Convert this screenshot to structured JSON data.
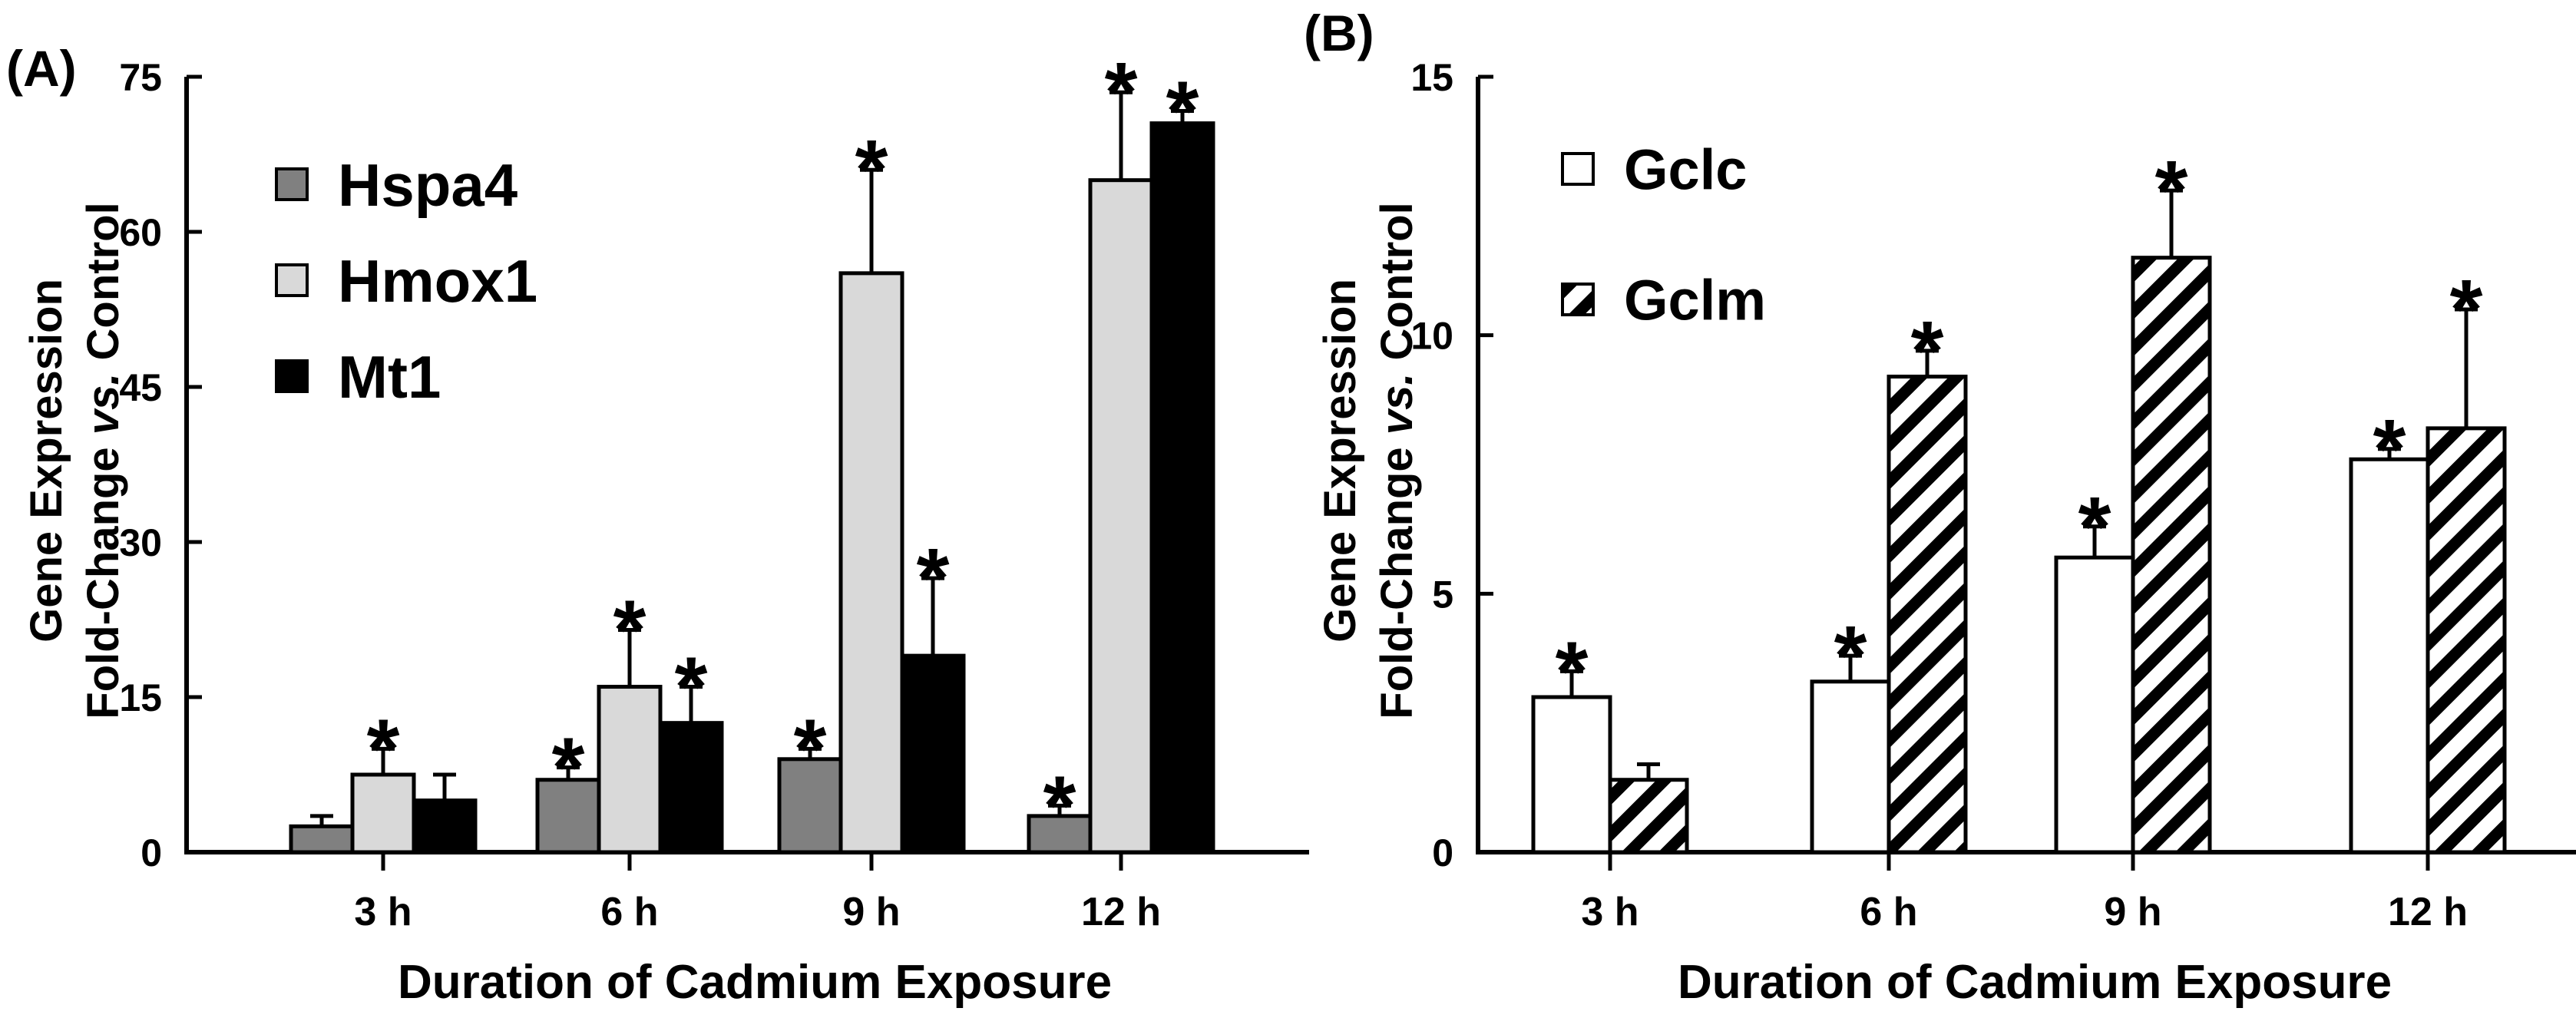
{
  "chart_data": [
    {
      "type": "bar",
      "panel_label": "(A)",
      "title": "",
      "xlabel": "Duration of Cadmium Exposure",
      "ylabel_line1": "Gene Expression",
      "ylabel_line2_pre": "Fold-Change ",
      "ylabel_line2_italic": "vs.",
      "ylabel_line2_post": " Control",
      "categories": [
        "3 h",
        "6 h",
        "9 h",
        "12 h"
      ],
      "ylim": [
        0,
        75
      ],
      "yticks": [
        "0",
        "15",
        "30",
        "45",
        "60",
        "75"
      ],
      "ytick_values": [
        0,
        15,
        30,
        45,
        60,
        75
      ],
      "legend_position": "top-left",
      "series": [
        {
          "name": "Hspa4",
          "values": [
            2.5,
            7,
            9,
            3.5
          ],
          "errors": [
            1,
            1.2,
            1,
            1
          ],
          "significant": [
            false,
            true,
            true,
            true
          ],
          "color": "#808080",
          "pattern": "solid"
        },
        {
          "name": "Hmox1",
          "values": [
            7.5,
            16,
            56,
            65
          ],
          "errors": [
            2.5,
            5.5,
            10,
            8.5
          ],
          "significant": [
            true,
            true,
            true,
            true
          ],
          "color": "#d9d9d9",
          "pattern": "solid"
        },
        {
          "name": "Mt1",
          "values": [
            5,
            12.5,
            19,
            70.5
          ],
          "errors": [
            2.5,
            3.5,
            7.5,
            1.2
          ],
          "significant": [
            false,
            true,
            true,
            true
          ],
          "color": "#000000",
          "pattern": "solid"
        }
      ],
      "significance_marker": "*"
    },
    {
      "type": "bar",
      "panel_label": "(B)",
      "title": "",
      "xlabel": "Duration of Cadmium Exposure",
      "ylabel_line1": "Gene Expression",
      "ylabel_line2_pre": "Fold-Change ",
      "ylabel_line2_italic": "vs.",
      "ylabel_line2_post": " Control",
      "categories": [
        "3 h",
        "6 h",
        "9 h",
        "12 h"
      ],
      "ylim": [
        0,
        15
      ],
      "yticks": [
        "0",
        "5",
        "10",
        "15"
      ],
      "ytick_values": [
        0,
        5,
        10,
        15
      ],
      "legend_position": "top-left",
      "series": [
        {
          "name": "Gclc",
          "values": [
            3,
            3.3,
            5.7,
            7.6
          ],
          "errors": [
            0.5,
            0.5,
            0.6,
            0.2
          ],
          "significant": [
            true,
            true,
            true,
            true
          ],
          "color": "#ffffff",
          "pattern": "solid"
        },
        {
          "name": "Gclm",
          "values": [
            1.4,
            9.2,
            11.5,
            8.2
          ],
          "errors": [
            0.3,
            0.5,
            1.3,
            2.3
          ],
          "significant": [
            false,
            true,
            true,
            true
          ],
          "color": "#ffffff",
          "pattern": "diagonal-hatch"
        }
      ],
      "significance_marker": "*"
    }
  ]
}
